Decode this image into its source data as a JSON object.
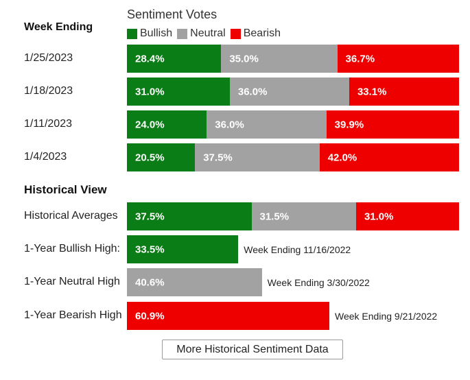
{
  "week_heading": "Week Ending",
  "legend": {
    "title": "Sentiment Votes",
    "items": [
      {
        "label": "Bullish",
        "color": "#0a7d16"
      },
      {
        "label": "Neutral",
        "color": "#a3a2a3"
      },
      {
        "label": "Bearish",
        "color": "#ee0000"
      }
    ]
  },
  "historical_heading": "Historical View",
  "button_label": "More Historical Sentiment Data",
  "chart_data": {
    "type": "bar",
    "stacked": true,
    "unit": "%",
    "series_colors": {
      "Bullish": "#0a7d16",
      "Neutral": "#a3a2a3",
      "Bearish": "#ee0000"
    },
    "weekly": [
      {
        "label": "1/25/2023",
        "values": [
          28.4,
          35.0,
          36.7
        ],
        "texts": [
          "28.4%",
          "35.0%",
          "36.7%"
        ]
      },
      {
        "label": "1/18/2023",
        "values": [
          31.0,
          36.0,
          33.1
        ],
        "texts": [
          "31.0%",
          "36.0%",
          "33.1%"
        ]
      },
      {
        "label": "1/11/2023",
        "values": [
          24.0,
          36.0,
          39.9
        ],
        "texts": [
          "24.0%",
          "36.0%",
          "39.9%"
        ]
      },
      {
        "label": "1/4/2023",
        "values": [
          20.5,
          37.5,
          42.0
        ],
        "texts": [
          "20.5%",
          "37.5%",
          "42.0%"
        ]
      }
    ],
    "historical_averages": {
      "label": "Historical Averages",
      "values": [
        37.5,
        31.5,
        31.0
      ],
      "texts": [
        "37.5%",
        "31.5%",
        "31.0%"
      ]
    },
    "highs": [
      {
        "label": "1-Year Bullish High:",
        "value": 33.5,
        "text": "33.5%",
        "series": "Bullish",
        "note": "Week Ending 11/16/2022"
      },
      {
        "label": "1-Year Neutral High",
        "value": 40.6,
        "text": "40.6%",
        "series": "Neutral",
        "note": "Week Ending 3/30/2022"
      },
      {
        "label": "1-Year Bearish High",
        "value": 60.9,
        "text": "60.9%",
        "series": "Bearish",
        "note": "Week Ending 9/21/2022"
      }
    ]
  }
}
